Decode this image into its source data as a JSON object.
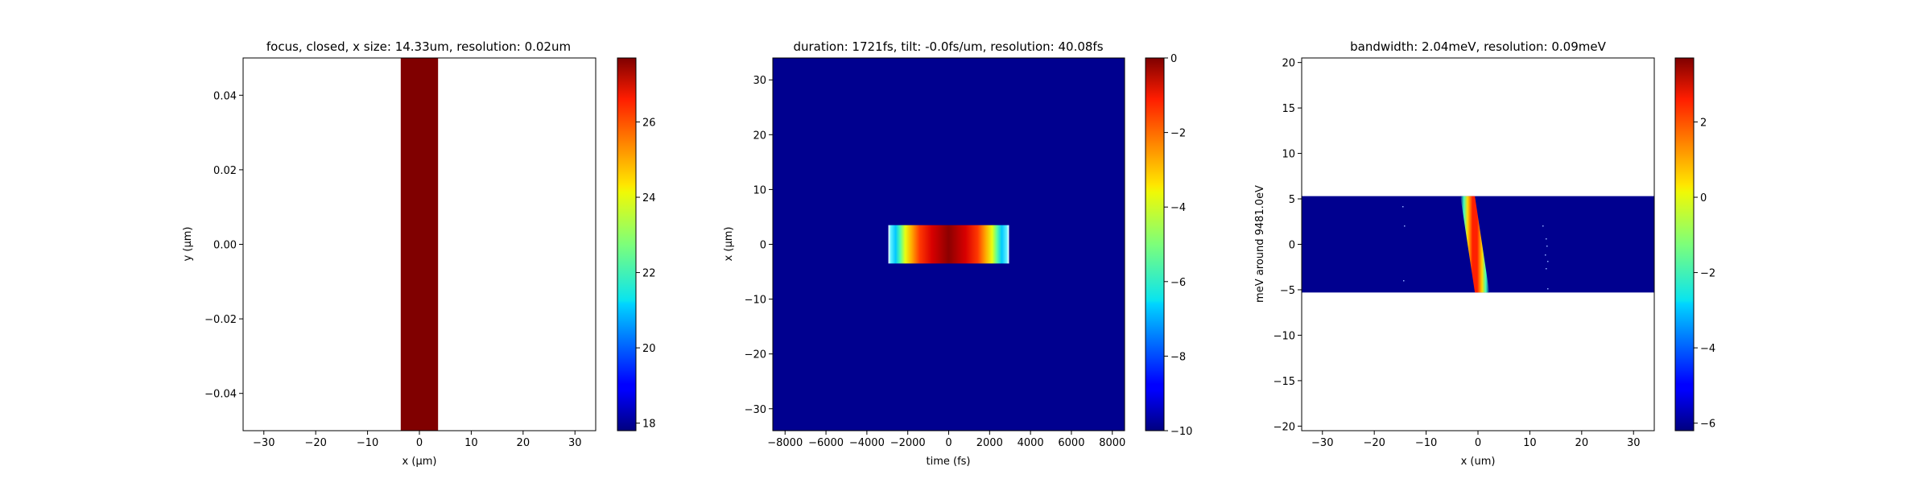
{
  "chart_data": [
    {
      "type": "heatmap",
      "title": "focus, closed, x size: 14.33um, resolution: 0.02um",
      "xlabel": "x (μm)",
      "ylabel": "y (μm)",
      "xlim": [
        -34,
        34
      ],
      "ylim": [
        -0.05,
        0.05
      ],
      "xticks": [
        -30,
        -20,
        -10,
        0,
        10,
        20,
        30
      ],
      "xtick_labels": [
        "−30",
        "−20",
        "−10",
        "0",
        "10",
        "20",
        "30"
      ],
      "yticks": [
        -0.04,
        -0.02,
        0.0,
        0.02,
        0.04
      ],
      "ytick_labels": [
        "−0.04",
        "−0.02",
        "0.00",
        "0.02",
        "0.04"
      ],
      "background": "#ffffff",
      "band": {
        "x_from": -3.6,
        "x_to": 3.6,
        "color": "#800000"
      },
      "colorbar": {
        "min": 17.8,
        "max": 27.7,
        "ticks": [
          18,
          20,
          22,
          24,
          26
        ],
        "tick_labels": [
          "18",
          "20",
          "22",
          "24",
          "26"
        ]
      },
      "grid": false
    },
    {
      "type": "heatmap",
      "title": "duration: 1721fs, tilt: -0.0fs/um, resolution: 40.08fs",
      "xlabel": "time (fs)",
      "ylabel": "x (μm)",
      "xlim": [
        -8600,
        8600
      ],
      "ylim": [
        -34,
        34
      ],
      "xticks": [
        -8000,
        -6000,
        -4000,
        -2000,
        0,
        2000,
        4000,
        6000,
        8000
      ],
      "xtick_labels": [
        "−8000",
        "−6000",
        "−4000",
        "−2000",
        "0",
        "2000",
        "4000",
        "6000",
        "8000"
      ],
      "yticks": [
        -30,
        -20,
        -10,
        0,
        10,
        20,
        30
      ],
      "ytick_labels": [
        "−30",
        "−20",
        "−10",
        "0",
        "10",
        "20",
        "30"
      ],
      "background": "#00008f",
      "pulse": {
        "t_from": -2950,
        "t_to": 2950,
        "x_from": -3.5,
        "x_to": 3.5
      },
      "colorbar": {
        "min": -10,
        "max": 0,
        "ticks": [
          -10,
          -8,
          -6,
          -4,
          -2,
          0
        ],
        "tick_labels": [
          "−10",
          "−8",
          "−6",
          "−4",
          "−2",
          "0"
        ]
      },
      "grid": false
    },
    {
      "type": "heatmap",
      "title": "bandwidth: 2.04meV, resolution: 0.09meV",
      "xlabel": "x (um)",
      "ylabel": "meV around 9481.0eV",
      "xlim": [
        -34,
        34
      ],
      "ylim": [
        -20.5,
        20.5
      ],
      "xticks": [
        -30,
        -20,
        -10,
        0,
        10,
        20,
        30
      ],
      "xtick_labels": [
        "−30",
        "−20",
        "−10",
        "0",
        "10",
        "20",
        "30"
      ],
      "yticks": [
        -20,
        -15,
        -10,
        -5,
        0,
        5,
        10,
        15,
        20
      ],
      "ytick_labels": [
        "−20",
        "−15",
        "−10",
        "−5",
        "0",
        "5",
        "10",
        "15",
        "20"
      ],
      "background": "#ffffff",
      "data_region": {
        "e_from": -5.3,
        "e_to": 5.3,
        "color": "#00008f"
      },
      "stripe": {
        "x_top": -2.0,
        "x_bottom": 0.8,
        "half_width": 1.4
      },
      "colorbar": {
        "min": -6.2,
        "max": 3.7,
        "ticks": [
          -6,
          -4,
          -2,
          0,
          2
        ],
        "tick_labels": [
          "−6",
          "−4",
          "−2",
          "0",
          "2"
        ]
      },
      "grid": false
    }
  ]
}
